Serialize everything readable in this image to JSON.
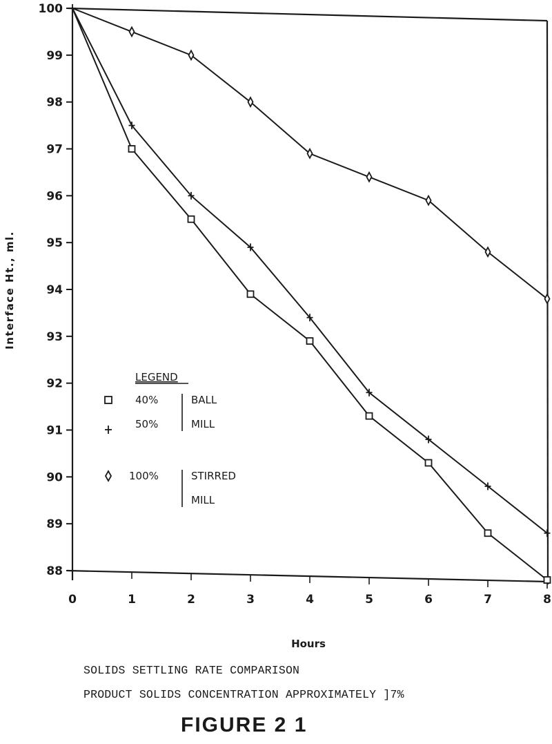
{
  "chart_data": {
    "type": "line",
    "title": "SOLIDS SETTLING RATE COMPARISON",
    "subtitle": "PRODUCT SOLIDS CONCENTRATION APPROXIMATELY ]7%",
    "figure_label": "FIGURE 2 1",
    "xlabel": "Hours",
    "ylabel": "Interface Ht., ml.",
    "x": [
      0,
      1,
      2,
      3,
      4,
      5,
      6,
      7,
      8
    ],
    "xticks": [
      "0",
      "1",
      "2",
      "3",
      "4",
      "5",
      "6",
      "7",
      "8"
    ],
    "yticks": [
      "88",
      "89",
      "90",
      "91",
      "92",
      "93",
      "94",
      "95",
      "96",
      "97",
      "98",
      "99",
      "100"
    ],
    "xlim": [
      0,
      8
    ],
    "ylim": [
      88,
      100
    ],
    "grid": false,
    "legend_position": "lower-left inside",
    "legend": {
      "title": "LEGEND",
      "groups": [
        {
          "label": "BALL MILL",
          "lines": [
            "BALL",
            "MILL"
          ],
          "entries": [
            {
              "marker": "square",
              "text": "40%"
            },
            {
              "marker": "plus",
              "text": "50%"
            }
          ]
        },
        {
          "label": "STIRRED MILL",
          "lines": [
            "STIRRED",
            "MILL"
          ],
          "entries": [
            {
              "marker": "diamond",
              "text": "100%"
            }
          ]
        }
      ]
    },
    "series": [
      {
        "name": "40% Ball Mill",
        "marker": "square",
        "values": [
          100,
          97.0,
          95.5,
          93.9,
          92.9,
          91.3,
          90.3,
          88.8,
          87.8
        ]
      },
      {
        "name": "50% Ball Mill",
        "marker": "plus",
        "values": [
          100,
          97.5,
          96.0,
          94.9,
          93.4,
          91.8,
          90.8,
          89.8,
          88.8
        ]
      },
      {
        "name": "100% Stirred Mill",
        "marker": "diamond",
        "values": [
          100,
          99.5,
          99.0,
          98.0,
          96.9,
          96.4,
          95.9,
          94.8,
          93.8
        ]
      }
    ]
  },
  "caption": {
    "line1": "SOLIDS SETTLING RATE COMPARISON",
    "line2": "PRODUCT SOLIDS CONCENTRATION APPROXIMATELY ]7%",
    "figure": "FIGURE 2 1"
  },
  "colors": {
    "ink": "#1a1a1a",
    "background": "#ffffff"
  }
}
